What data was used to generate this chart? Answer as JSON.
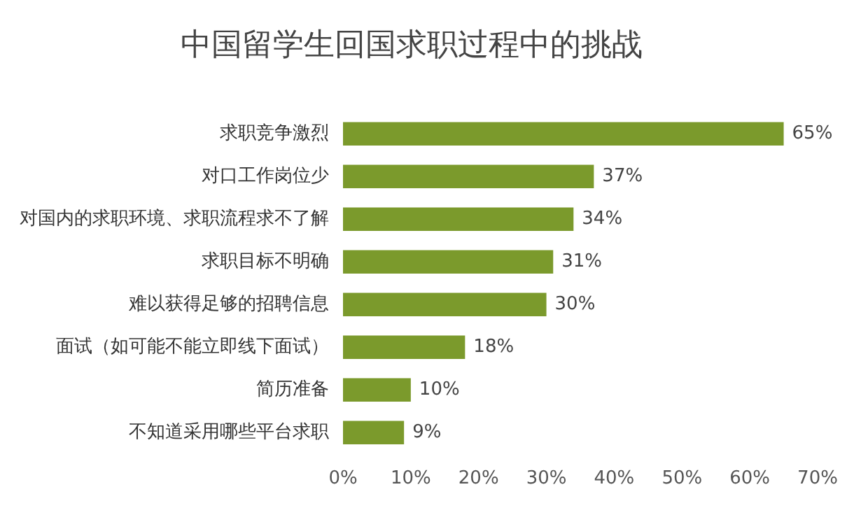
{
  "chart_data": {
    "type": "bar",
    "orientation": "horizontal",
    "title": "中国留学生回国求职过程中的挑战",
    "categories": [
      "求职竞争激烈",
      "对口工作岗位少",
      "对国内的求职环境、求职流程求不了解",
      "求职目标不明确",
      "难以获得足够的招聘信息",
      "面试（如可能不能立即线下面试）",
      "简历准备",
      "不知道采用哪些平台求职"
    ],
    "values": [
      65,
      37,
      34,
      31,
      30,
      18,
      10,
      9
    ],
    "value_labels": [
      "65%",
      "37%",
      "34%",
      "31%",
      "30%",
      "18%",
      "10%",
      "9%"
    ],
    "color": "#7b9a2c",
    "xlim": [
      0,
      70
    ],
    "xticks": [
      {
        "value": 0,
        "label": "0%"
      },
      {
        "value": 10,
        "label": "10%"
      },
      {
        "value": 20,
        "label": "20%"
      },
      {
        "value": 30,
        "label": "30%"
      },
      {
        "value": 40,
        "label": "40%"
      },
      {
        "value": 50,
        "label": "50%"
      },
      {
        "value": 60,
        "label": "60%"
      },
      {
        "value": 70,
        "label": "70%"
      }
    ],
    "grid": false,
    "legend": false
  }
}
